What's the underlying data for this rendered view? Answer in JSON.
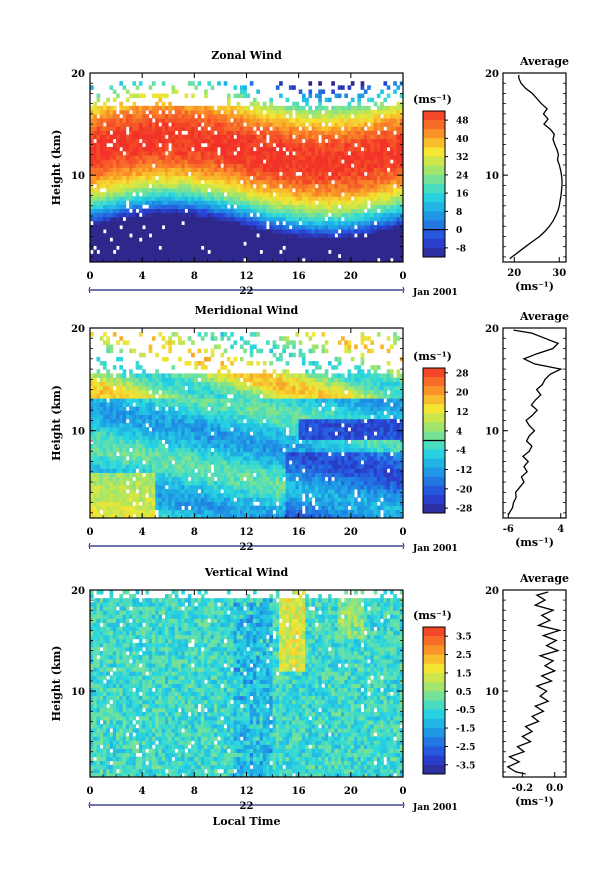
{
  "chart_data": [
    {
      "type": "heatmap",
      "title": "Zonal Wind",
      "ylabel": "Height (km)",
      "x_ticks": [
        "0",
        "4",
        "8",
        "12",
        "16",
        "20",
        "0"
      ],
      "y_ticks": [
        "20",
        "10"
      ],
      "xlim": [
        0,
        24
      ],
      "ylim": [
        1.5,
        20
      ],
      "date_label": "22",
      "date_suffix": "Jan 2001",
      "colorbar": {
        "unit": "(ms⁻¹)",
        "min": -12,
        "max": 52,
        "levels": [
          "48",
          "40",
          "32",
          "24",
          "16",
          "8",
          "0",
          "-8"
        ],
        "level_values": [
          48,
          40,
          32,
          24,
          16,
          8,
          0,
          -8
        ],
        "contour_at": 0
      },
      "field": {
        "kind": "zonal",
        "missing_above_km": 16.8,
        "top_km": 19.0
      },
      "profile": {
        "title": "Average",
        "xlabel": "(ms⁻¹)",
        "x_ticks": [
          "20",
          "30"
        ],
        "x_tick_values": [
          20,
          30
        ],
        "xlim": [
          17.5,
          31.5
        ],
        "y_ticks": [
          "20",
          "10"
        ],
        "height_km": [
          1.8,
          2.0,
          2.5,
          3.0,
          3.5,
          4.0,
          4.5,
          5.0,
          5.5,
          6.0,
          6.5,
          7.0,
          7.5,
          8.0,
          8.5,
          9.0,
          9.5,
          10.0,
          10.5,
          11.0,
          11.5,
          12.0,
          12.5,
          13.0,
          13.5,
          14.0,
          14.5,
          15.0,
          15.5,
          16.0,
          16.5,
          17.0,
          17.5,
          18.0,
          18.5,
          19.0,
          19.5,
          19.8
        ],
        "value": [
          19.0,
          19.5,
          21.0,
          22.5,
          24.0,
          25.6,
          26.8,
          27.8,
          28.6,
          29.2,
          29.7,
          30.0,
          30.2,
          30.4,
          30.5,
          30.6,
          30.6,
          30.5,
          30.3,
          30.0,
          29.6,
          29.8,
          29.5,
          29.0,
          28.6,
          28.9,
          28.0,
          26.6,
          27.5,
          26.5,
          27.3,
          26.0,
          25.0,
          24.0,
          22.5,
          21.5,
          21.0,
          21.0
        ]
      }
    },
    {
      "type": "heatmap",
      "title": "Meridional Wind",
      "ylabel": "Height (km)",
      "x_ticks": [
        "0",
        "4",
        "8",
        "12",
        "16",
        "20",
        "0"
      ],
      "y_ticks": [
        "20",
        "10"
      ],
      "xlim": [
        0,
        24
      ],
      "ylim": [
        1.5,
        20
      ],
      "date_label": "22",
      "date_suffix": "Jan 2001",
      "colorbar": {
        "unit": "(ms⁻¹)",
        "min": -30,
        "max": 30,
        "levels": [
          "28",
          "20",
          "12",
          "4",
          "-4",
          "-12",
          "-20",
          "-28"
        ],
        "level_values": [
          28,
          20,
          12,
          4,
          -4,
          -12,
          -20,
          -28
        ],
        "contour_at": 0
      },
      "field": {
        "kind": "meridional",
        "missing_above_km": 15.5,
        "top_km": 19.5
      },
      "profile": {
        "title": "Average",
        "xlabel": "(ms⁻¹)",
        "x_ticks": [
          "-6",
          "4"
        ],
        "x_tick_values": [
          -6,
          4
        ],
        "xlim": [
          -7,
          5
        ],
        "y_ticks": [
          "20",
          "10"
        ],
        "height_km": [
          1.8,
          2.0,
          2.5,
          3.0,
          3.5,
          4.0,
          4.5,
          5.0,
          5.5,
          6.0,
          6.5,
          7.0,
          7.5,
          8.0,
          8.5,
          9.0,
          9.5,
          10.0,
          10.5,
          11.0,
          11.5,
          12.0,
          12.5,
          13.0,
          13.5,
          14.0,
          14.5,
          15.0,
          15.5,
          16.0,
          16.5,
          17.0,
          17.5,
          18.0,
          18.5,
          19.0,
          19.5,
          19.8
        ],
        "value": [
          -6.0,
          -5.8,
          -5.2,
          -5.0,
          -4.5,
          -4.6,
          -3.8,
          -3.0,
          -3.5,
          -2.4,
          -3.0,
          -2.2,
          -3.2,
          -2.0,
          -1.5,
          -2.5,
          -2.0,
          -1.0,
          -2.0,
          -2.6,
          -1.4,
          -0.5,
          -1.6,
          -0.8,
          0.2,
          -0.6,
          0.5,
          1.0,
          2.0,
          4.0,
          -1.0,
          -3.0,
          -0.5,
          2.5,
          3.5,
          1.0,
          -1.5,
          -5.0
        ]
      }
    },
    {
      "type": "heatmap",
      "title": "Vertical Wind",
      "ylabel": "Height (km)",
      "xlabel": "Local Time",
      "x_ticks": [
        "0",
        "4",
        "8",
        "12",
        "16",
        "20",
        "0"
      ],
      "y_ticks": [
        "20",
        "10"
      ],
      "xlim": [
        0,
        24
      ],
      "ylim": [
        1.5,
        20
      ],
      "date_label": "22",
      "date_suffix": "Jan 2001",
      "colorbar": {
        "unit": "(ms⁻¹)",
        "min": -4,
        "max": 4,
        "levels": [
          "3.5",
          "2.5",
          "1.5",
          "0.5",
          "-0.5",
          "-1.5",
          "-2.5",
          "-3.5"
        ],
        "level_values": [
          3.5,
          2.5,
          1.5,
          0.5,
          -0.5,
          -1.5,
          -2.5,
          -3.5
        ],
        "contour_at": null
      },
      "field": {
        "kind": "vertical",
        "missing_above_km": 19.0,
        "top_km": 20.0
      },
      "profile": {
        "title": "Average",
        "xlabel": "(ms⁻¹)",
        "x_ticks": [
          "-0.2",
          "0.0"
        ],
        "x_tick_values": [
          -0.2,
          0.0
        ],
        "xlim": [
          -0.32,
          0.07
        ],
        "y_ticks": [
          "20",
          "10"
        ],
        "height_km": [
          1.8,
          2.0,
          2.5,
          3.0,
          3.5,
          4.0,
          4.5,
          5.0,
          5.5,
          6.0,
          6.5,
          7.0,
          7.5,
          8.0,
          8.5,
          9.0,
          9.5,
          10.0,
          10.5,
          11.0,
          11.5,
          12.0,
          12.5,
          13.0,
          13.5,
          14.0,
          14.5,
          15.0,
          15.5,
          16.0,
          16.5,
          17.0,
          17.5,
          18.0,
          18.5,
          19.0,
          19.5,
          19.8
        ],
        "value": [
          -0.18,
          -0.24,
          -0.29,
          -0.22,
          -0.28,
          -0.19,
          -0.23,
          -0.15,
          -0.2,
          -0.14,
          -0.18,
          -0.1,
          -0.14,
          -0.07,
          -0.12,
          -0.04,
          -0.09,
          -0.05,
          -0.11,
          -0.02,
          -0.08,
          0.0,
          -0.06,
          -0.01,
          -0.09,
          0.02,
          -0.05,
          0.01,
          -0.07,
          0.03,
          -0.1,
          -0.03,
          -0.08,
          -0.01,
          -0.12,
          -0.06,
          -0.11,
          -0.04
        ]
      }
    }
  ]
}
